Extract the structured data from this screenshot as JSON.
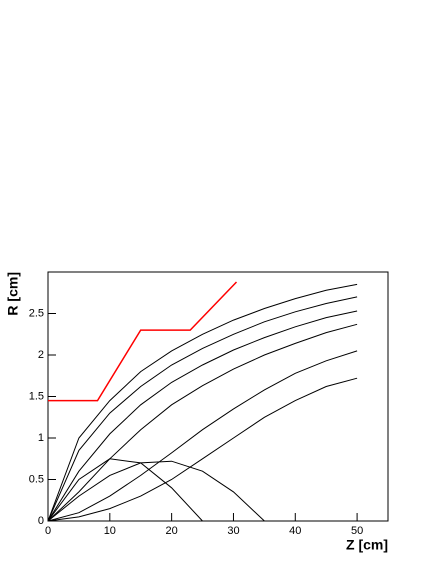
{
  "chart_data": {
    "type": "line",
    "xlabel": "Z [cm]",
    "ylabel": "R [cm]",
    "x": [
      0,
      5,
      10,
      15,
      20,
      25,
      30,
      35,
      40,
      45,
      50
    ],
    "xlim": [
      0,
      55
    ],
    "xticks": [
      0,
      10,
      20,
      30,
      40,
      50
    ],
    "ylim": [
      0,
      3
    ],
    "yticks": [
      0,
      0.5,
      1,
      1.5,
      2,
      2.5
    ],
    "series": [
      {
        "color": "#000000",
        "values": [
          0,
          1.0,
          1.45,
          1.8,
          2.05,
          2.25,
          2.42,
          2.56,
          2.68,
          2.78,
          2.85
        ]
      },
      {
        "color": "#000000",
        "values": [
          0,
          0.85,
          1.3,
          1.62,
          1.88,
          2.08,
          2.25,
          2.4,
          2.52,
          2.62,
          2.7
        ]
      },
      {
        "color": "#000000",
        "values": [
          0,
          0.6,
          1.05,
          1.4,
          1.67,
          1.88,
          2.06,
          2.21,
          2.34,
          2.45,
          2.53
        ]
      },
      {
        "color": "#000000",
        "values": [
          0,
          0.35,
          0.75,
          1.1,
          1.4,
          1.63,
          1.83,
          2.0,
          2.14,
          2.27,
          2.37
        ]
      },
      {
        "color": "#000000",
        "values": [
          0,
          0.1,
          0.3,
          0.55,
          0.82,
          1.1,
          1.35,
          1.58,
          1.78,
          1.93,
          2.05
        ]
      },
      {
        "color": "#000000",
        "values": [
          0,
          0.5,
          0.75,
          0.7,
          0.4,
          0,
          null,
          null,
          null,
          null,
          null
        ]
      },
      {
        "color": "#000000",
        "values": [
          0,
          0.3,
          0.55,
          0.7,
          0.72,
          0.6,
          0.35,
          0,
          null,
          null,
          null
        ]
      },
      {
        "color": "#000000",
        "values": [
          0,
          0.05,
          0.15,
          0.3,
          0.5,
          0.75,
          1.0,
          1.25,
          1.45,
          1.62,
          1.72
        ]
      }
    ],
    "boundary": {
      "color": "#ff0000",
      "x": [
        0,
        8,
        15,
        23,
        30.5
      ],
      "values": [
        1.45,
        1.45,
        2.3,
        2.3,
        2.88
      ]
    }
  }
}
